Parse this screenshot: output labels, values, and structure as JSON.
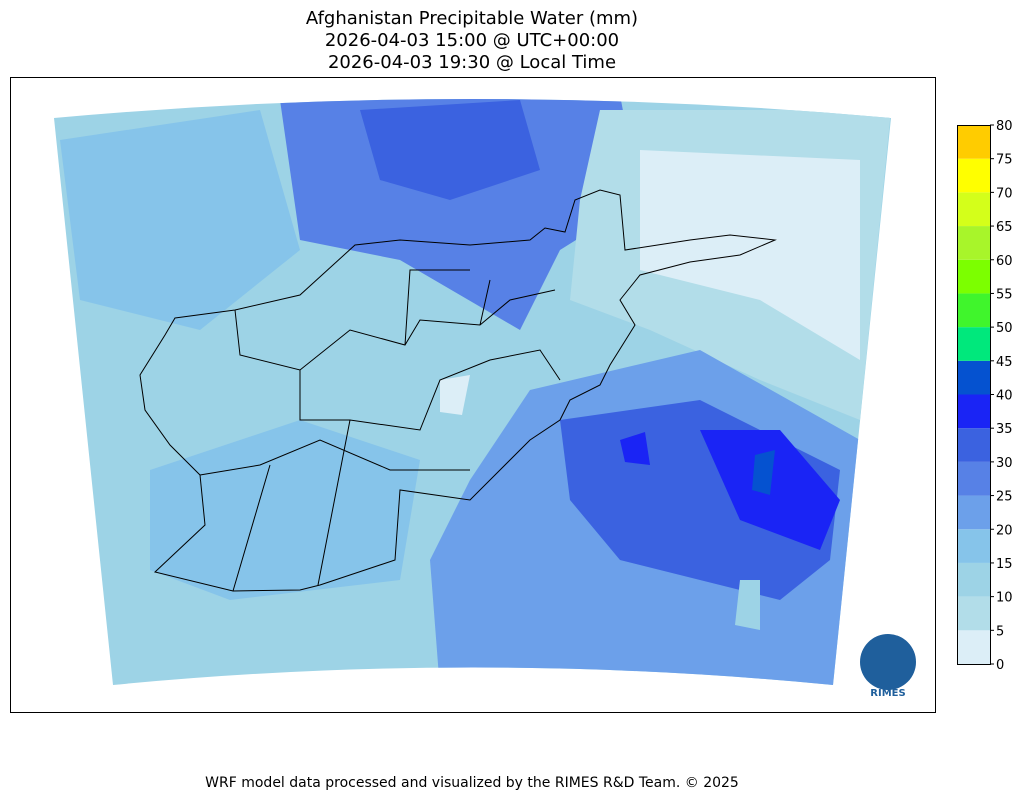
{
  "title_lines": [
    "Afghanistan Precipitable Water (mm)",
    "2026-04-03 15:00 @ UTC+00:00",
    "2026-04-03 19:30 @ Local Time"
  ],
  "colorbar": {
    "lim": [
      0,
      80
    ],
    "ticks": [
      0,
      5,
      10,
      15,
      20,
      25,
      30,
      35,
      40,
      45,
      50,
      55,
      60,
      65,
      70,
      75,
      80
    ],
    "colors": [
      "#dceef7",
      "#b2dde9",
      "#9dd3e6",
      "#86c4ea",
      "#6ca0ea",
      "#5781e6",
      "#3b62e0",
      "#1a24f5",
      "#0552d0",
      "#00e87c",
      "#40f52c",
      "#7cff00",
      "#a8f52a",
      "#d4ff1a",
      "#ffff00",
      "#ffcc00"
    ]
  },
  "logo": "RIMES",
  "footer": "WRF model data processed and visualized by the RIMES R&D Team. © 2025"
}
